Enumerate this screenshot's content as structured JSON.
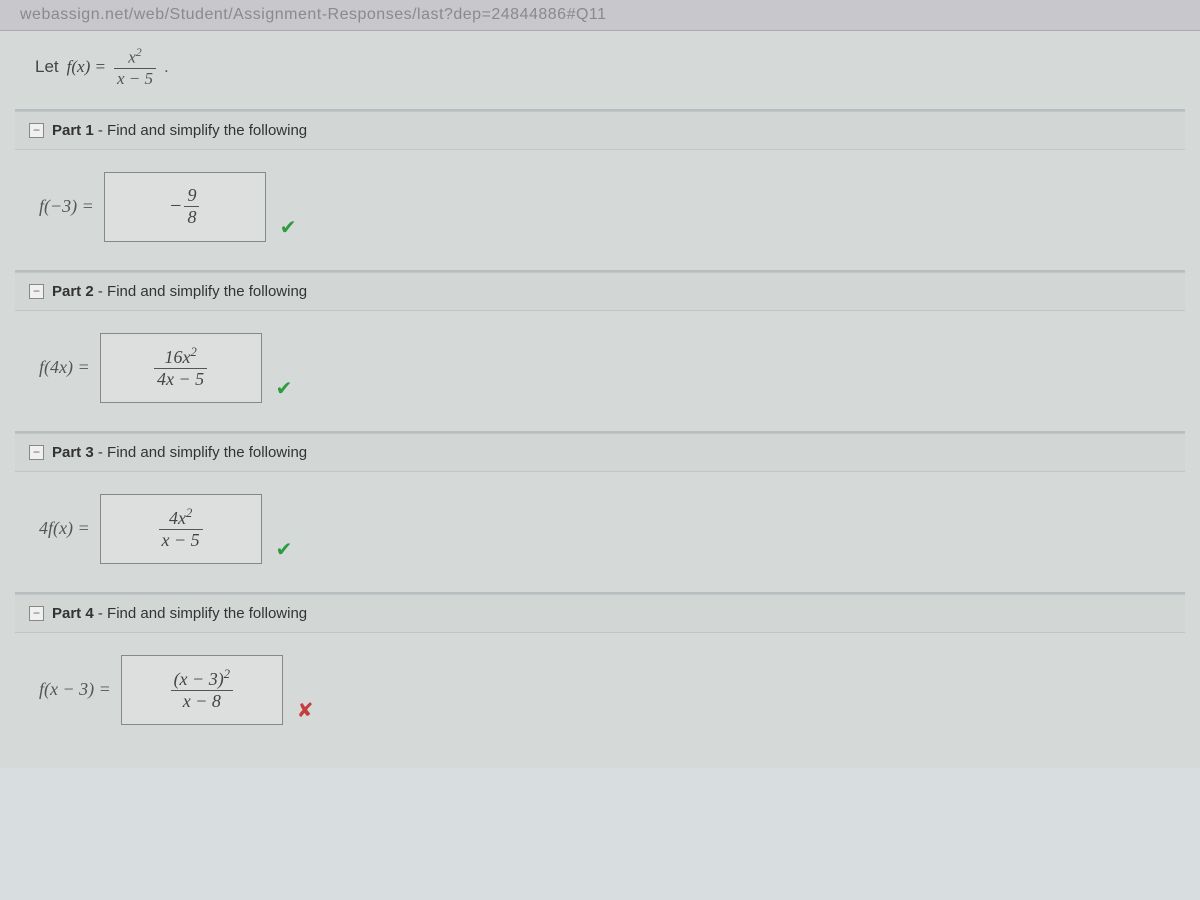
{
  "url": "webassign.net/web/Student/Assignment-Responses/last?dep=24844886#Q11",
  "definition": {
    "let": "Let",
    "func": "f(x) =",
    "num": "x",
    "num_exp": "2",
    "den": "x − 5",
    "dot": "."
  },
  "parts": [
    {
      "title_bold": "Part 1",
      "title_rest": " - Find and simplify the following",
      "label": "f(−3) =",
      "answer": {
        "neg": "−",
        "num": "9",
        "den": "8"
      },
      "mark": "check"
    },
    {
      "title_bold": "Part 2",
      "title_rest": " - Find and simplify the following",
      "label": "f(4x) =",
      "answer": {
        "num": "16x",
        "num_exp": "2",
        "den": "4x − 5"
      },
      "mark": "check"
    },
    {
      "title_bold": "Part 3",
      "title_rest": " - Find and simplify the following",
      "label": "4f(x) =",
      "answer": {
        "num": "4x",
        "num_exp": "2",
        "den": "x − 5"
      },
      "mark": "check"
    },
    {
      "title_bold": "Part 4",
      "title_rest": " - Find and simplify the following",
      "label": "f(x − 3) =",
      "answer": {
        "num": "(x − 3)",
        "num_exp": "2",
        "den": "x − 8"
      },
      "mark": "cross"
    }
  ]
}
